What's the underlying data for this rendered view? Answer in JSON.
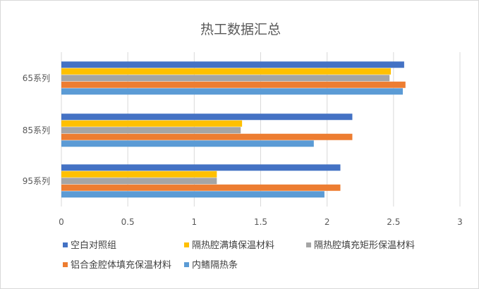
{
  "chart_data": {
    "type": "bar",
    "orientation": "horizontal",
    "title": "热工数据汇总",
    "categories": [
      "65系列",
      "85系列",
      "95系列"
    ],
    "xlim": [
      0,
      3
    ],
    "x_ticks": [
      "0",
      "0.5",
      "1",
      "1.5",
      "2",
      "2.5",
      "3"
    ],
    "grid": "vertical",
    "legend_position": "bottom",
    "series": [
      {
        "name": "空白对照组",
        "color": "#4472C4",
        "values": [
          2.58,
          2.19,
          2.1
        ]
      },
      {
        "name": "隔热腔满填保温材料",
        "color": "#FFC000",
        "values": [
          2.48,
          1.36,
          1.17
        ]
      },
      {
        "name": "隔热腔填充矩形保温材料",
        "color": "#A5A5A5",
        "values": [
          2.47,
          1.35,
          1.17
        ]
      },
      {
        "name": "铝合金腔体填充保温材料",
        "color": "#ED7D31",
        "values": [
          2.59,
          2.19,
          2.1
        ]
      },
      {
        "name": "内鳍隔热条",
        "color": "#5B9BD5",
        "values": [
          2.57,
          1.9,
          1.98
        ]
      }
    ]
  }
}
